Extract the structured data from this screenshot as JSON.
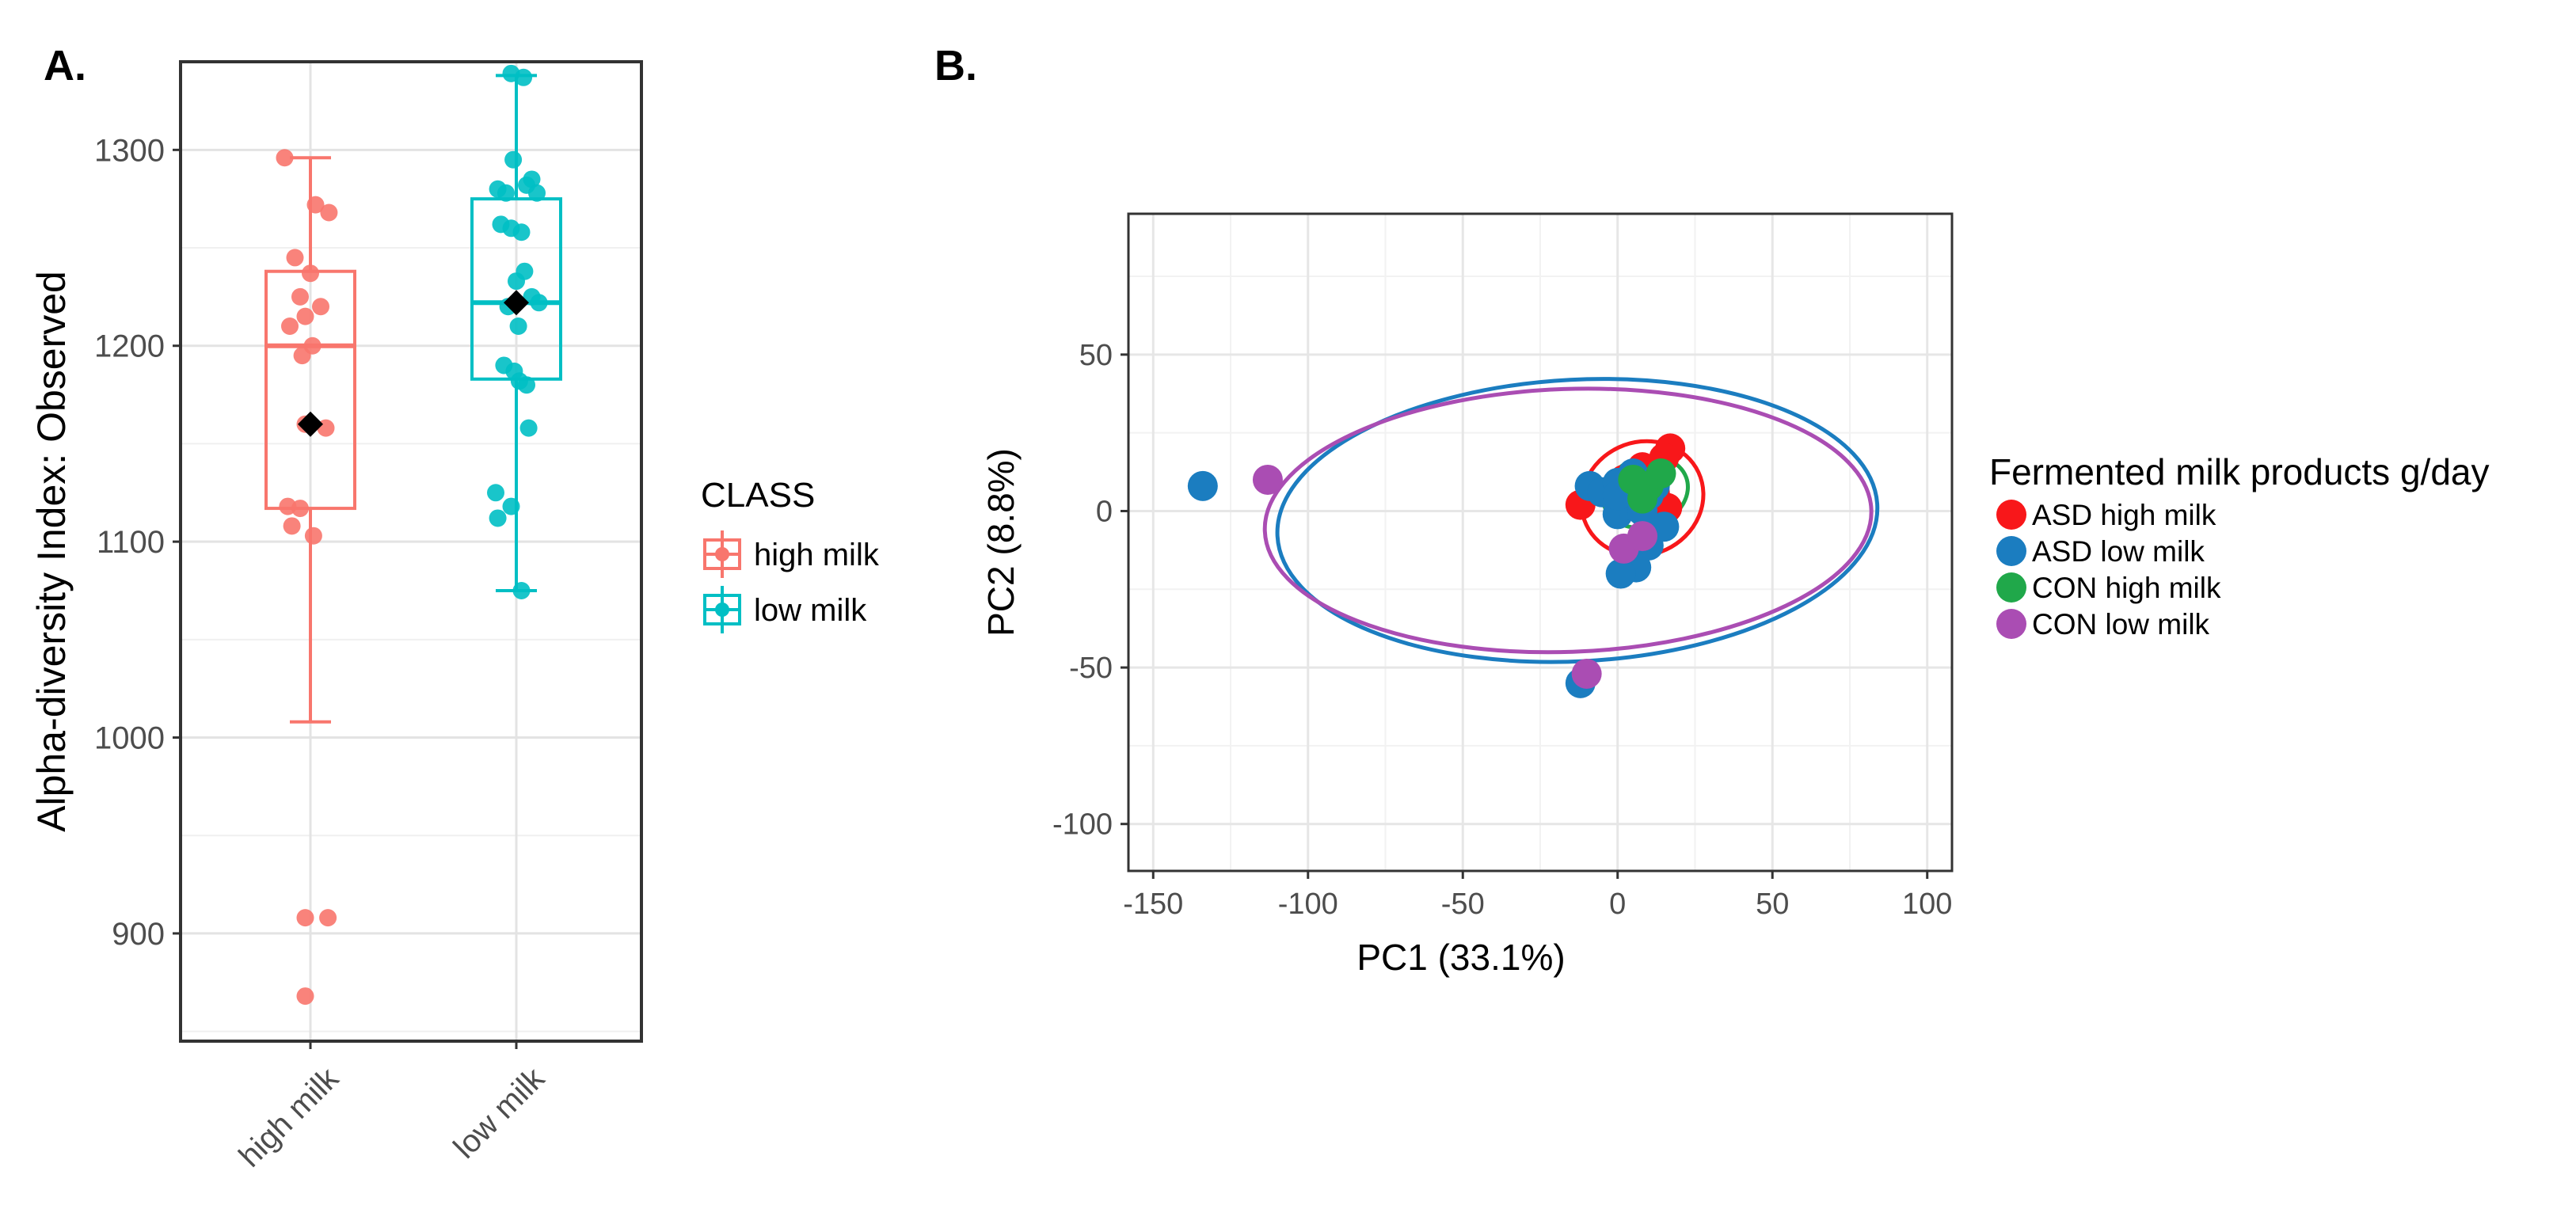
{
  "panels": {
    "a_label": "A.",
    "b_label": "B."
  },
  "chart_data": [
    {
      "type": "boxplot",
      "ylabel": "Alpha-diversity Index: Observed",
      "xlabel": "",
      "categories": [
        "high milk",
        "low milk"
      ],
      "ylim": [
        845,
        1345
      ],
      "yticks": [
        900,
        1000,
        1100,
        1200,
        1300
      ],
      "grid": true,
      "legend": {
        "title": "CLASS",
        "entries": [
          "high milk",
          "low milk"
        ],
        "position": "right"
      },
      "colors": [
        "#F8766D",
        "#00BFC4"
      ],
      "mean_color": "#000000",
      "groups": [
        {
          "name": "high milk",
          "min": 1008,
          "q1": 1117,
          "median": 1200,
          "q3": 1238,
          "max": 1296,
          "mean": 1160,
          "points": [
            {
              "j": -0.25,
              "y": 1296
            },
            {
              "j": 0.05,
              "y": 1272
            },
            {
              "j": 0.18,
              "y": 1268
            },
            {
              "j": -0.15,
              "y": 1245
            },
            {
              "j": 0.0,
              "y": 1237
            },
            {
              "j": -0.1,
              "y": 1225
            },
            {
              "j": 0.1,
              "y": 1220
            },
            {
              "j": -0.05,
              "y": 1215
            },
            {
              "j": -0.2,
              "y": 1210
            },
            {
              "j": 0.02,
              "y": 1200
            },
            {
              "j": -0.08,
              "y": 1195
            },
            {
              "j": 0.15,
              "y": 1158
            },
            {
              "j": -0.05,
              "y": 1160
            },
            {
              "j": -0.22,
              "y": 1118
            },
            {
              "j": -0.1,
              "y": 1117
            },
            {
              "j": -0.18,
              "y": 1108
            },
            {
              "j": 0.03,
              "y": 1103
            },
            {
              "j": -0.05,
              "y": 908
            },
            {
              "j": 0.17,
              "y": 908
            },
            {
              "j": -0.05,
              "y": 868
            }
          ]
        },
        {
          "name": "low milk",
          "min": 1075,
          "q1": 1183,
          "median": 1222,
          "q3": 1275,
          "max": 1338,
          "mean": 1222,
          "points": [
            {
              "j": -0.05,
              "y": 1339
            },
            {
              "j": 0.07,
              "y": 1337
            },
            {
              "j": 0.15,
              "y": 1285
            },
            {
              "j": -0.03,
              "y": 1295
            },
            {
              "j": 0.1,
              "y": 1282
            },
            {
              "j": -0.18,
              "y": 1280
            },
            {
              "j": -0.1,
              "y": 1278
            },
            {
              "j": 0.2,
              "y": 1278
            },
            {
              "j": -0.15,
              "y": 1262
            },
            {
              "j": -0.05,
              "y": 1260
            },
            {
              "j": 0.05,
              "y": 1258
            },
            {
              "j": 0.08,
              "y": 1238
            },
            {
              "j": 0.0,
              "y": 1233
            },
            {
              "j": 0.15,
              "y": 1225
            },
            {
              "j": 0.22,
              "y": 1222
            },
            {
              "j": -0.08,
              "y": 1220
            },
            {
              "j": 0.02,
              "y": 1210
            },
            {
              "j": -0.12,
              "y": 1190
            },
            {
              "j": -0.02,
              "y": 1187
            },
            {
              "j": 0.03,
              "y": 1182
            },
            {
              "j": 0.1,
              "y": 1180
            },
            {
              "j": 0.12,
              "y": 1158
            },
            {
              "j": -0.2,
              "y": 1125
            },
            {
              "j": -0.05,
              "y": 1118
            },
            {
              "j": -0.18,
              "y": 1112
            },
            {
              "j": 0.05,
              "y": 1075
            }
          ]
        }
      ]
    },
    {
      "type": "scatter",
      "xlabel": "PC1 (33.1%)",
      "ylabel": "PC2 (8.8%)",
      "xlim": [
        -158,
        108
      ],
      "ylim": [
        -115,
        95
      ],
      "xticks": [
        -150,
        -100,
        -50,
        0,
        50,
        100
      ],
      "yticks": [
        -100,
        -50,
        0,
        50
      ],
      "grid": true,
      "legend": {
        "title": "Fermented milk products g/day",
        "position": "right"
      },
      "series": [
        {
          "name": "ASD high milk",
          "color": "#F8171A",
          "points": [
            [
              17,
              20
            ],
            [
              15,
              17
            ],
            [
              -12,
              2
            ],
            [
              16,
              1
            ],
            [
              8,
              14
            ],
            [
              2,
              10
            ],
            [
              12,
              6
            ],
            [
              5,
              3
            ]
          ],
          "ellipse": {
            "cx": 8,
            "cy": 4,
            "rx": 20,
            "ry": 18,
            "angle": -25
          }
        },
        {
          "name": "ASD low milk",
          "color": "#1B7DC0",
          "points": [
            [
              -134,
              8
            ],
            [
              -9,
              8
            ],
            [
              -5,
              6
            ],
            [
              0,
              9
            ],
            [
              5,
              12
            ],
            [
              12,
              8
            ],
            [
              10,
              5
            ],
            [
              0,
              -1
            ],
            [
              4,
              2
            ],
            [
              15,
              -5
            ],
            [
              10,
              -11
            ],
            [
              6,
              -18
            ],
            [
              1,
              -20
            ],
            [
              -12,
              -55
            ],
            [
              0,
              5
            ],
            [
              8,
              0
            ]
          ],
          "ellipse": {
            "cx": -13,
            "cy": -3,
            "rx": 97,
            "ry": 45,
            "angle": -3
          }
        },
        {
          "name": "CON high milk",
          "color": "#20A84A",
          "points": [
            [
              5,
              10
            ],
            [
              10,
              8
            ],
            [
              14,
              12
            ],
            [
              8,
              4
            ]
          ],
          "ellipse": {
            "cx": 9,
            "cy": 6,
            "rx": 14,
            "ry": 11,
            "angle": -20
          }
        },
        {
          "name": "CON low milk",
          "color": "#AA4DB3",
          "points": [
            [
              -113,
              10
            ],
            [
              -10,
              -52
            ],
            [
              2,
              -12
            ],
            [
              8,
              -8
            ]
          ],
          "ellipse": {
            "cx": -16,
            "cy": -3,
            "rx": 98,
            "ry": 42,
            "angle": -2
          }
        }
      ]
    }
  ]
}
